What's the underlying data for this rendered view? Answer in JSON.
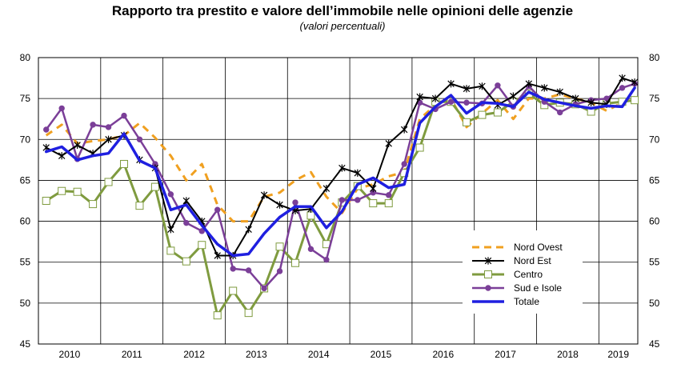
{
  "chart_data": {
    "type": "line",
    "title": "Rapporto tra prestito e valore dell’immobile nelle opinioni delle agenzie",
    "subtitle": "(valori percentuali)",
    "xlabel": "",
    "ylabel": "",
    "ylim": [
      45,
      80
    ],
    "yticks": [
      "45",
      "50",
      "55",
      "60",
      "65",
      "70",
      "75",
      "80"
    ],
    "xlim": [
      0,
      38.5
    ],
    "years": [
      {
        "label": "2010",
        "center": 2
      },
      {
        "label": "2011",
        "center": 6
      },
      {
        "label": "2012",
        "center": 10
      },
      {
        "label": "2013",
        "center": 14
      },
      {
        "label": "2014",
        "center": 18
      },
      {
        "label": "2015",
        "center": 22
      },
      {
        "label": "2016",
        "center": 26
      },
      {
        "label": "2017",
        "center": 30
      },
      {
        "label": "2018",
        "center": 34
      },
      {
        "label": "2019",
        "center": 37.25
      }
    ],
    "year_boundaries": [
      0,
      4,
      8,
      12,
      16,
      20,
      24,
      28,
      32,
      36,
      38.5
    ],
    "grid": true,
    "legend_position": "bottom-right",
    "series": [
      {
        "name": "Nord Ovest",
        "color": "#f0a020",
        "style": "dashed",
        "marker": "none",
        "x": [
          0.5,
          1.5,
          2.5,
          3.5,
          4.5,
          5.5,
          6.5,
          7.5,
          8.5,
          9.5,
          10.5,
          11.5,
          12.5,
          13.5,
          14.5,
          15.5,
          16.5,
          17.5,
          18.5,
          19.5,
          20.5,
          21.5,
          22.5,
          23.5,
          24.5,
          25.5,
          26.5,
          27.5,
          28.5,
          29.5,
          30.5,
          31.5,
          32.5,
          33.5,
          34.5,
          35.5,
          36.5,
          37.5,
          38.3
        ],
        "values": [
          70.5,
          71.8,
          69.5,
          69.8,
          70.0,
          70.5,
          72.0,
          70.2,
          68.0,
          65.0,
          67.0,
          62.0,
          60.0,
          60.0,
          63.0,
          63.5,
          65.0,
          66.0,
          63.0,
          61.0,
          64.0,
          64.5,
          65.5,
          66.0,
          72.5,
          74.2,
          75.0,
          71.5,
          73.2,
          74.8,
          72.5,
          75.0,
          75.0,
          75.5,
          75.0,
          74.5,
          73.5,
          74.5,
          75.2
        ]
      },
      {
        "name": "Nord Est",
        "color": "#000000",
        "style": "solid",
        "marker": "star",
        "x": [
          0.5,
          1.5,
          2.5,
          3.5,
          4.5,
          5.5,
          6.5,
          7.5,
          8.5,
          9.5,
          10.5,
          11.5,
          12.5,
          13.5,
          14.5,
          15.5,
          16.5,
          17.5,
          18.5,
          19.5,
          20.5,
          21.5,
          22.5,
          23.5,
          24.5,
          25.5,
          26.5,
          27.5,
          28.5,
          29.5,
          30.5,
          31.5,
          32.5,
          33.5,
          34.5,
          35.5,
          36.5,
          37.5,
          38.3
        ],
        "values": [
          69.0,
          68.0,
          69.3,
          68.3,
          70.0,
          70.5,
          67.5,
          66.5,
          59.0,
          62.5,
          60.0,
          55.8,
          55.8,
          59.0,
          63.2,
          62.0,
          61.3,
          61.5,
          64.0,
          66.5,
          65.9,
          64.0,
          69.5,
          71.2,
          75.2,
          75.0,
          76.8,
          76.2,
          76.5,
          74.2,
          75.3,
          76.8,
          76.3,
          75.8,
          75.0,
          74.5,
          74.3,
          77.5,
          77.0
        ]
      },
      {
        "name": "Centro",
        "color": "#7f9b3f",
        "style": "solid",
        "marker": "square",
        "x": [
          0.5,
          1.5,
          2.5,
          3.5,
          4.5,
          5.5,
          6.5,
          7.5,
          8.5,
          9.5,
          10.5,
          11.5,
          12.5,
          13.5,
          14.5,
          15.5,
          16.5,
          17.5,
          18.5,
          19.5,
          20.5,
          21.5,
          22.5,
          23.5,
          24.5,
          25.5,
          26.5,
          27.5,
          28.5,
          29.5,
          30.5,
          31.5,
          32.5,
          33.5,
          34.5,
          35.5,
          36.5,
          37.5,
          38.3
        ],
        "values": [
          62.5,
          63.7,
          63.6,
          62.1,
          64.8,
          67.0,
          61.9,
          64.2,
          56.4,
          55.1,
          57.1,
          48.5,
          51.5,
          48.8,
          51.8,
          56.9,
          54.9,
          60.7,
          57.2,
          62.3,
          64.3,
          62.2,
          62.2,
          65.9,
          69.0,
          74.6,
          74.6,
          72.1,
          73.0,
          73.3,
          74.6,
          75.6,
          74.2,
          74.5,
          74.3,
          73.4,
          74.4,
          74.6,
          74.8
        ]
      },
      {
        "name": "Sud e Isole",
        "color": "#7b3f98",
        "style": "solid",
        "marker": "circle",
        "x": [
          0.5,
          1.5,
          2.5,
          3.5,
          4.5,
          5.5,
          6.5,
          7.5,
          8.5,
          9.5,
          10.5,
          11.5,
          12.5,
          13.5,
          14.5,
          15.5,
          16.5,
          17.5,
          18.5,
          19.5,
          20.5,
          21.5,
          22.5,
          23.5,
          24.5,
          25.5,
          26.5,
          27.5,
          28.5,
          29.5,
          30.5,
          31.5,
          32.5,
          33.5,
          34.5,
          35.5,
          36.5,
          37.5,
          38.3
        ],
        "values": [
          71.2,
          73.8,
          67.6,
          71.8,
          71.5,
          72.9,
          70.0,
          67.0,
          63.3,
          59.8,
          58.8,
          61.4,
          54.2,
          54.0,
          51.8,
          53.9,
          62.3,
          56.6,
          55.3,
          62.6,
          62.6,
          63.5,
          63.2,
          67.0,
          74.5,
          73.7,
          74.6,
          74.5,
          74.4,
          76.6,
          74.0,
          76.5,
          74.6,
          73.3,
          74.3,
          74.8,
          75.0,
          76.3,
          76.8
        ]
      },
      {
        "name": "Totale",
        "color": "#1f1fe0",
        "style": "solid",
        "marker": "none",
        "x": [
          0.5,
          1.5,
          2.5,
          3.5,
          4.5,
          5.5,
          6.5,
          7.5,
          8.5,
          9.5,
          10.5,
          11.5,
          12.5,
          13.5,
          14.5,
          15.5,
          16.5,
          17.5,
          18.5,
          19.5,
          20.5,
          21.5,
          22.5,
          23.5,
          24.5,
          25.5,
          26.5,
          27.5,
          28.5,
          29.5,
          30.5,
          31.5,
          32.5,
          33.5,
          34.5,
          35.5,
          36.5,
          37.5,
          38.3
        ],
        "values": [
          68.5,
          69.1,
          67.5,
          68.0,
          68.3,
          70.7,
          67.4,
          66.5,
          61.4,
          62.0,
          59.5,
          57.2,
          55.8,
          56.0,
          58.5,
          60.5,
          61.8,
          61.8,
          59.2,
          61.2,
          64.5,
          65.3,
          64.1,
          64.5,
          72.0,
          74.0,
          75.4,
          73.2,
          74.5,
          74.4,
          74.0,
          75.8,
          74.9,
          74.5,
          74.1,
          73.8,
          74.1,
          74.0,
          76.3
        ]
      }
    ]
  }
}
